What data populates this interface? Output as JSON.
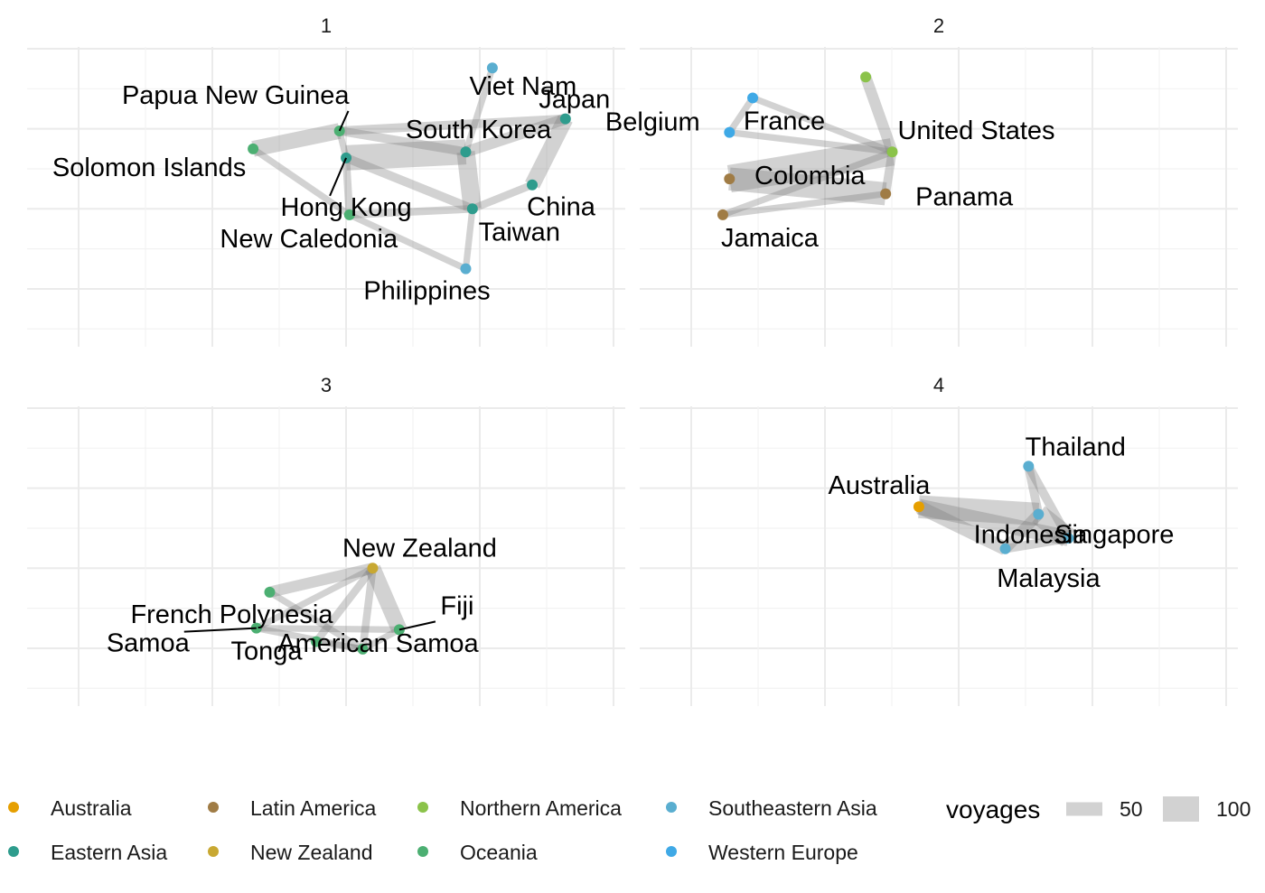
{
  "chart_data": {
    "type": "network",
    "panels": [
      {
        "title": "1",
        "nodes": [
          {
            "name": "Viet Nam",
            "region": "Southeastern Asia",
            "x": 7.0,
            "y": 9.3,
            "label": "Viet Nam"
          },
          {
            "name": "Papua New Guinea",
            "region": "Oceania",
            "x": 4.7,
            "y": 7.2,
            "label": "Papua New Guinea"
          },
          {
            "name": "Solomon Islands",
            "region": "Oceania",
            "x": 3.4,
            "y": 6.6,
            "label": "Solomon Islands"
          },
          {
            "name": "South Korea",
            "region": "Eastern Asia",
            "x": 6.6,
            "y": 6.5,
            "label": "South Korea"
          },
          {
            "name": "Japan",
            "region": "Eastern Asia",
            "x": 8.1,
            "y": 7.6,
            "label": "Japan"
          },
          {
            "name": "Hong Kong",
            "region": "Eastern Asia",
            "x": 4.8,
            "y": 6.3,
            "label": "Hong Kong"
          },
          {
            "name": "China",
            "region": "Eastern Asia",
            "x": 7.6,
            "y": 5.4,
            "label": "China"
          },
          {
            "name": "New Caledonia",
            "region": "Oceania",
            "x": 4.85,
            "y": 4.4,
            "label": "New Caledonia"
          },
          {
            "name": "Taiwan",
            "region": "Eastern Asia",
            "x": 6.7,
            "y": 4.6,
            "label": "Taiwan"
          },
          {
            "name": "Philippines",
            "region": "Southeastern Asia",
            "x": 6.6,
            "y": 2.6,
            "label": "Philippines"
          }
        ],
        "edges": [
          {
            "from": "Papua New Guinea",
            "to": "Japan",
            "voyages": 30
          },
          {
            "from": "Papua New Guinea",
            "to": "South Korea",
            "voyages": 30
          },
          {
            "from": "Papua New Guinea",
            "to": "Hong Kong",
            "voyages": 20
          },
          {
            "from": "Papua New Guinea",
            "to": "Solomon Islands",
            "voyages": 60
          },
          {
            "from": "Solomon Islands",
            "to": "New Caledonia",
            "voyages": 20
          },
          {
            "from": "Hong Kong",
            "to": "South Korea",
            "voyages": 100
          },
          {
            "from": "Hong Kong",
            "to": "New Caledonia",
            "voyages": 25
          },
          {
            "from": "Hong Kong",
            "to": "Taiwan",
            "voyages": 30
          },
          {
            "from": "South Korea",
            "to": "Taiwan",
            "voyages": 70
          },
          {
            "from": "South Korea",
            "to": "Japan",
            "voyages": 40
          },
          {
            "from": "South Korea",
            "to": "Viet Nam",
            "voyages": 20
          },
          {
            "from": "Japan",
            "to": "China",
            "voyages": 60
          },
          {
            "from": "China",
            "to": "Taiwan",
            "voyages": 25
          },
          {
            "from": "New Caledonia",
            "to": "Taiwan",
            "voyages": 25
          },
          {
            "from": "Taiwan",
            "to": "Philippines",
            "voyages": 20
          },
          {
            "from": "New Caledonia",
            "to": "Philippines",
            "voyages": 20
          }
        ]
      },
      {
        "title": "2",
        "nodes": [
          {
            "name": "Northern America node",
            "region": "Northern America",
            "x": 3.4,
            "y": 9.0,
            "label": ""
          },
          {
            "name": "France",
            "region": "Western Europe",
            "x": 1.7,
            "y": 8.3,
            "label": "France"
          },
          {
            "name": "Belgium",
            "region": "Western Europe",
            "x": 1.35,
            "y": 7.15,
            "label": "Belgium"
          },
          {
            "name": "United States",
            "region": "Northern America",
            "x": 3.8,
            "y": 6.5,
            "label": "United States"
          },
          {
            "name": "Colombia",
            "region": "Latin America",
            "x": 1.35,
            "y": 5.6,
            "label": "Colombia"
          },
          {
            "name": "Panama",
            "region": "Latin America",
            "x": 3.7,
            "y": 5.1,
            "label": "Panama"
          },
          {
            "name": "Jamaica",
            "region": "Latin America",
            "x": 1.25,
            "y": 4.4,
            "label": "Jamaica"
          }
        ],
        "edges": [
          {
            "from": "United States",
            "to": "Northern America node",
            "voyages": 40
          },
          {
            "from": "United States",
            "to": "France",
            "voyages": 20
          },
          {
            "from": "United States",
            "to": "Belgium",
            "voyages": 20
          },
          {
            "from": "France",
            "to": "Belgium",
            "voyages": 20
          },
          {
            "from": "United States",
            "to": "Colombia",
            "voyages": 110
          },
          {
            "from": "United States",
            "to": "Panama",
            "voyages": 30
          },
          {
            "from": "Colombia",
            "to": "Panama",
            "voyages": 90
          },
          {
            "from": "United States",
            "to": "Jamaica",
            "voyages": 20
          },
          {
            "from": "Jamaica",
            "to": "Panama",
            "voyages": 20
          }
        ]
      },
      {
        "title": "3",
        "nodes": [
          {
            "name": "New Zealand",
            "region": "New Zealand",
            "x": 5.2,
            "y": 4.6,
            "label": "New Zealand"
          },
          {
            "name": "French Polynesia",
            "region": "Oceania",
            "x": 3.65,
            "y": 3.8,
            "label": "French Polynesia"
          },
          {
            "name": "Samoa",
            "region": "Oceania",
            "x": 3.45,
            "y": 2.6,
            "label": "Samoa"
          },
          {
            "name": "Fiji",
            "region": "Oceania",
            "x": 5.6,
            "y": 2.55,
            "label": "Fiji"
          },
          {
            "name": "Tonga",
            "region": "Oceania",
            "x": 4.35,
            "y": 2.15,
            "label": "Tonga"
          },
          {
            "name": "American Samoa",
            "region": "Oceania",
            "x": 5.05,
            "y": 1.9,
            "label": "American Samoa"
          }
        ],
        "edges": [
          {
            "from": "New Zealand",
            "to": "French Polynesia",
            "voyages": 40
          },
          {
            "from": "New Zealand",
            "to": "Fiji",
            "voyages": 60
          },
          {
            "from": "New Zealand",
            "to": "Tonga",
            "voyages": 25
          },
          {
            "from": "New Zealand",
            "to": "American Samoa",
            "voyages": 25
          },
          {
            "from": "New Zealand",
            "to": "Samoa",
            "voyages": 20
          },
          {
            "from": "French Polynesia",
            "to": "American Samoa",
            "voyages": 20
          },
          {
            "from": "Samoa",
            "to": "Fiji",
            "voyages": 20
          },
          {
            "from": "Samoa",
            "to": "American Samoa",
            "voyages": 20
          },
          {
            "from": "Tonga",
            "to": "American Samoa",
            "voyages": 20
          },
          {
            "from": "Fiji",
            "to": "American Samoa",
            "voyages": 20
          }
        ]
      },
      {
        "title": "4",
        "nodes": [
          {
            "name": "Thailand",
            "region": "Southeastern Asia",
            "x": 5.85,
            "y": 8.0,
            "label": "Thailand"
          },
          {
            "name": "Australia",
            "region": "Australia",
            "x": 4.2,
            "y": 6.65,
            "label": "Australia"
          },
          {
            "name": "Singapore",
            "region": "Southeastern Asia",
            "x": 6.0,
            "y": 6.4,
            "label": "Singapore"
          },
          {
            "name": "Malaysia",
            "region": "Southeastern Asia",
            "x": 6.45,
            "y": 5.6,
            "label": "Malaysia"
          },
          {
            "name": "Indonesia",
            "region": "Southeastern Asia",
            "x": 5.5,
            "y": 5.25,
            "label": "Indonesia"
          }
        ],
        "edges": [
          {
            "from": "Australia",
            "to": "Singapore",
            "voyages": 90
          },
          {
            "from": "Australia",
            "to": "Malaysia",
            "voyages": 60
          },
          {
            "from": "Australia",
            "to": "Indonesia",
            "voyages": 50
          },
          {
            "from": "Thailand",
            "to": "Singapore",
            "voyages": 30
          },
          {
            "from": "Thailand",
            "to": "Malaysia",
            "voyages": 30
          },
          {
            "from": "Singapore",
            "to": "Malaysia",
            "voyages": 80
          },
          {
            "from": "Singapore",
            "to": "Indonesia",
            "voyages": 40
          },
          {
            "from": "Malaysia",
            "to": "Indonesia",
            "voyages": 30
          }
        ]
      }
    ],
    "regions": [
      {
        "name": "Australia",
        "color": "#E69F00"
      },
      {
        "name": "Eastern Asia",
        "color": "#2E9C8D"
      },
      {
        "name": "Latin America",
        "color": "#A07C45"
      },
      {
        "name": "New Zealand",
        "color": "#C8A832"
      },
      {
        "name": "Northern America",
        "color": "#8BC34A"
      },
      {
        "name": "Oceania",
        "color": "#4CAF72"
      },
      {
        "name": "Southeastern Asia",
        "color": "#5AAED0"
      },
      {
        "name": "Western Europe",
        "color": "#3FA9E6"
      }
    ],
    "legend": {
      "placement": "bottom",
      "color_title": "",
      "size_title": "voyages",
      "size_breaks": [
        50,
        100
      ]
    },
    "axis_range": {
      "x": [
        0,
        9
      ],
      "y": [
        0,
        10
      ]
    },
    "grid": true
  }
}
